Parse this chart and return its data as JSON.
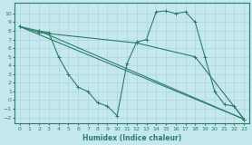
{
  "xlabel": "Humidex (Indice chaleur)",
  "xlim": [
    -0.5,
    23.5
  ],
  "ylim": [
    -2.7,
    11.2
  ],
  "xticks": [
    0,
    1,
    2,
    3,
    4,
    5,
    6,
    7,
    8,
    9,
    10,
    11,
    12,
    13,
    14,
    15,
    16,
    17,
    18,
    19,
    20,
    21,
    22,
    23
  ],
  "yticks": [
    -2,
    -1,
    0,
    1,
    2,
    3,
    4,
    5,
    6,
    7,
    8,
    9,
    10
  ],
  "color": "#2d7d6b",
  "bg_color": "#c5e8ee",
  "grid_color": "#aad4db",
  "lines": [
    {
      "x": [
        0,
        2,
        3,
        4,
        5,
        6,
        7,
        8,
        9,
        10,
        11,
        12,
        13,
        14,
        15,
        16,
        17,
        18,
        19,
        20,
        21,
        22,
        23
      ],
      "y": [
        8.5,
        8.0,
        7.8,
        5.0,
        3.0,
        1.5,
        1.0,
        -0.3,
        -0.7,
        -1.8,
        4.2,
        6.7,
        7.0,
        10.2,
        10.3,
        10.0,
        10.2,
        9.0,
        5.0,
        1.0,
        -0.5,
        -0.7,
        -2.2
      ]
    },
    {
      "x": [
        0,
        23
      ],
      "y": [
        8.5,
        -2.2
      ]
    },
    {
      "x": [
        2,
        23
      ],
      "y": [
        8.0,
        -2.2
      ]
    },
    {
      "x": [
        0,
        2,
        12,
        18,
        23
      ],
      "y": [
        8.5,
        7.8,
        6.6,
        5.0,
        -2.2
      ]
    }
  ]
}
